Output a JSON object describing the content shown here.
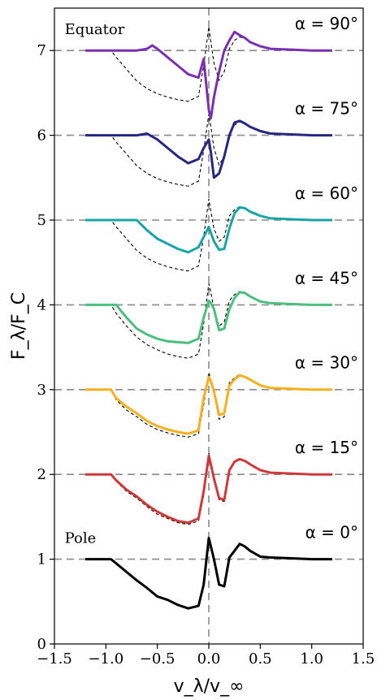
{
  "chart_data": {
    "type": "line",
    "xlabel": "v_λ/v_∞",
    "ylabel": "F_λ/F_C",
    "xlim": [
      -1.5,
      1.5
    ],
    "ylim": [
      0,
      7.5
    ],
    "xticks": [
      -1.5,
      -1.0,
      -0.5,
      0.0,
      0.5,
      1.0,
      1.5
    ],
    "xtick_labels": [
      "−1.5",
      "−1.0",
      "−0.5",
      "0.0",
      "0.5",
      "1.0",
      "1.5"
    ],
    "yticks": [
      0,
      1,
      2,
      3,
      4,
      5,
      6,
      7
    ],
    "ytick_labels": [
      "0",
      "1",
      "2",
      "3",
      "4",
      "5",
      "6",
      "7"
    ],
    "reference_lines": {
      "horizontal": [
        1,
        2,
        3,
        4,
        5,
        6,
        7
      ],
      "vertical": [
        0
      ]
    },
    "annotations": [
      {
        "text": "Equator",
        "x": -1.4,
        "y": 7.25
      },
      {
        "text": "Pole",
        "x": -1.4,
        "y": 1.25
      }
    ],
    "series": [
      {
        "alpha_label": "α = 0°",
        "offset": 1,
        "color": "#000000",
        "x": [
          -1.2,
          -0.95,
          -0.9,
          -0.8,
          -0.7,
          -0.6,
          -0.5,
          -0.4,
          -0.3,
          -0.2,
          -0.1,
          -0.05,
          0.0,
          0.02,
          0.05,
          0.1,
          0.15,
          0.2,
          0.25,
          0.3,
          0.35,
          0.4,
          0.5,
          0.6,
          0.8,
          1.0,
          1.2
        ],
        "y": [
          1.0,
          1.0,
          0.95,
          0.85,
          0.75,
          0.66,
          0.56,
          0.52,
          0.46,
          0.42,
          0.45,
          0.7,
          1.25,
          1.15,
          1.0,
          0.7,
          0.68,
          1.02,
          1.1,
          1.18,
          1.15,
          1.1,
          1.03,
          1.02,
          1.01,
          1.0,
          1.0
        ]
      },
      {
        "alpha_label": "α = 15°",
        "offset": 2,
        "color": "#d0393a",
        "x": [
          -1.2,
          -0.95,
          -0.9,
          -0.8,
          -0.7,
          -0.6,
          -0.5,
          -0.4,
          -0.3,
          -0.2,
          -0.1,
          -0.05,
          0.0,
          0.02,
          0.05,
          0.1,
          0.15,
          0.2,
          0.25,
          0.3,
          0.35,
          0.4,
          0.5,
          0.6,
          0.8,
          1.0,
          1.2
        ],
        "y": [
          2.0,
          2.0,
          1.93,
          1.82,
          1.74,
          1.64,
          1.56,
          1.5,
          1.45,
          1.43,
          1.48,
          1.8,
          2.22,
          2.12,
          1.95,
          1.72,
          1.7,
          2.05,
          2.15,
          2.18,
          2.16,
          2.12,
          2.05,
          2.02,
          2.01,
          2.0,
          2.0
        ],
        "reference": {
          "x": [
            -1.2,
            -0.95,
            -0.9,
            -0.8,
            -0.7,
            -0.6,
            -0.5,
            -0.4,
            -0.3,
            -0.2,
            -0.1,
            -0.05,
            0.0,
            0.02,
            0.05,
            0.1,
            0.15,
            0.2,
            0.25,
            0.3,
            0.35,
            0.4,
            0.5,
            0.6,
            0.8,
            1.0,
            1.2
          ],
          "y": [
            2.0,
            2.0,
            1.92,
            1.8,
            1.72,
            1.62,
            1.53,
            1.48,
            1.43,
            1.41,
            1.45,
            1.75,
            2.25,
            2.14,
            1.95,
            1.7,
            1.68,
            2.06,
            2.16,
            2.19,
            2.16,
            2.12,
            2.05,
            2.02,
            2.01,
            2.0,
            2.0
          ]
        }
      },
      {
        "alpha_label": "α = 30°",
        "offset": 3,
        "color": "#f5b01e",
        "x": [
          -1.2,
          -0.95,
          -0.9,
          -0.8,
          -0.7,
          -0.6,
          -0.5,
          -0.4,
          -0.3,
          -0.2,
          -0.1,
          -0.05,
          0.0,
          0.02,
          0.05,
          0.1,
          0.15,
          0.2,
          0.25,
          0.3,
          0.35,
          0.4,
          0.5,
          0.6,
          0.8,
          1.0,
          1.2
        ],
        "y": [
          3.0,
          3.0,
          2.9,
          2.8,
          2.72,
          2.63,
          2.57,
          2.53,
          2.5,
          2.48,
          2.52,
          2.9,
          3.15,
          3.1,
          2.98,
          2.7,
          2.72,
          3.05,
          3.12,
          3.17,
          3.15,
          3.12,
          3.05,
          3.02,
          3.01,
          3.0,
          3.0
        ],
        "reference": {
          "x": [
            -1.2,
            -0.95,
            -0.9,
            -0.8,
            -0.7,
            -0.6,
            -0.5,
            -0.4,
            -0.3,
            -0.2,
            -0.1,
            -0.05,
            0.0,
            0.02,
            0.05,
            0.1,
            0.15,
            0.2,
            0.25,
            0.3,
            0.35,
            0.4,
            0.5,
            0.6,
            0.8,
            1.0,
            1.2
          ],
          "y": [
            3.0,
            3.0,
            2.88,
            2.76,
            2.68,
            2.59,
            2.53,
            2.49,
            2.46,
            2.44,
            2.48,
            2.82,
            3.2,
            3.12,
            2.95,
            2.65,
            2.68,
            3.08,
            3.14,
            3.18,
            3.15,
            3.12,
            3.05,
            3.02,
            3.01,
            3.0,
            3.0
          ]
        }
      },
      {
        "alpha_label": "α = 45°",
        "offset": 4,
        "color": "#4cbf7f",
        "x": [
          -1.2,
          -0.95,
          -0.9,
          -0.8,
          -0.7,
          -0.6,
          -0.5,
          -0.4,
          -0.3,
          -0.2,
          -0.1,
          -0.05,
          0.0,
          0.02,
          0.05,
          0.1,
          0.15,
          0.2,
          0.25,
          0.3,
          0.35,
          0.4,
          0.5,
          0.6,
          0.8,
          1.0,
          1.2
        ],
        "y": [
          4.0,
          4.0,
          4.0,
          3.85,
          3.72,
          3.65,
          3.6,
          3.57,
          3.56,
          3.55,
          3.6,
          3.85,
          4.05,
          4.02,
          3.95,
          3.7,
          3.72,
          3.95,
          4.08,
          4.15,
          4.14,
          4.1,
          4.04,
          4.02,
          4.01,
          4.0,
          4.0
        ],
        "reference": {
          "x": [
            -1.2,
            -0.95,
            -0.9,
            -0.8,
            -0.7,
            -0.6,
            -0.5,
            -0.4,
            -0.3,
            -0.2,
            -0.1,
            -0.05,
            0.0,
            0.02,
            0.05,
            0.1,
            0.15,
            0.2,
            0.25,
            0.3,
            0.35,
            0.4,
            0.5,
            0.6,
            0.8,
            1.0,
            1.2
          ],
          "y": [
            4.0,
            4.0,
            3.9,
            3.75,
            3.62,
            3.53,
            3.47,
            3.42,
            3.39,
            3.37,
            3.42,
            3.78,
            4.25,
            4.15,
            3.95,
            3.75,
            3.8,
            4.05,
            4.12,
            4.16,
            4.14,
            4.1,
            4.04,
            4.02,
            4.01,
            4.0,
            4.0
          ]
        }
      },
      {
        "alpha_label": "α = 60°",
        "offset": 5,
        "color": "#1aa5a5",
        "x": [
          -1.2,
          -0.95,
          -0.9,
          -0.8,
          -0.7,
          -0.6,
          -0.5,
          -0.4,
          -0.3,
          -0.2,
          -0.1,
          -0.05,
          0.0,
          0.02,
          0.05,
          0.1,
          0.15,
          0.2,
          0.25,
          0.3,
          0.35,
          0.4,
          0.5,
          0.6,
          0.8,
          1.0,
          1.2
        ],
        "y": [
          5.0,
          5.0,
          5.0,
          5.0,
          5.0,
          4.88,
          4.78,
          4.72,
          4.66,
          4.62,
          4.68,
          4.8,
          4.92,
          4.85,
          4.75,
          4.65,
          4.66,
          4.9,
          5.08,
          5.15,
          5.14,
          5.1,
          5.05,
          5.02,
          5.01,
          5.0,
          5.0
        ],
        "reference": {
          "x": [
            -1.2,
            -0.95,
            -0.9,
            -0.8,
            -0.7,
            -0.6,
            -0.5,
            -0.4,
            -0.3,
            -0.2,
            -0.1,
            -0.05,
            0.0,
            0.02,
            0.05,
            0.1,
            0.15,
            0.2,
            0.25,
            0.3,
            0.35,
            0.4,
            0.5,
            0.6,
            0.8,
            1.0,
            1.2
          ],
          "y": [
            5.0,
            5.0,
            4.92,
            4.78,
            4.64,
            4.55,
            4.49,
            4.45,
            4.42,
            4.4,
            4.46,
            4.8,
            5.25,
            5.1,
            4.9,
            4.75,
            4.8,
            5.05,
            5.12,
            5.16,
            5.14,
            5.1,
            5.05,
            5.02,
            5.01,
            5.0,
            5.0
          ]
        }
      },
      {
        "alpha_label": "α = 75°",
        "offset": 6,
        "color": "#26287f",
        "x": [
          -1.2,
          -0.95,
          -0.9,
          -0.8,
          -0.7,
          -0.6,
          -0.5,
          -0.4,
          -0.3,
          -0.2,
          -0.1,
          -0.05,
          0.0,
          0.02,
          0.05,
          0.1,
          0.15,
          0.2,
          0.25,
          0.3,
          0.35,
          0.4,
          0.5,
          0.6,
          0.8,
          1.0,
          1.2
        ],
        "y": [
          6.0,
          6.0,
          6.0,
          6.0,
          6.0,
          6.02,
          5.95,
          5.85,
          5.75,
          5.67,
          5.72,
          5.85,
          5.95,
          5.8,
          5.5,
          5.55,
          5.75,
          6.0,
          6.15,
          6.17,
          6.14,
          6.1,
          6.05,
          6.02,
          6.01,
          6.0,
          6.0
        ],
        "reference": {
          "x": [
            -1.2,
            -0.95,
            -0.9,
            -0.8,
            -0.7,
            -0.6,
            -0.5,
            -0.4,
            -0.3,
            -0.2,
            -0.1,
            -0.05,
            0.0,
            0.02,
            0.05,
            0.1,
            0.15,
            0.2,
            0.25,
            0.3,
            0.35,
            0.4,
            0.5,
            0.6,
            0.8,
            1.0,
            1.2
          ],
          "y": [
            6.0,
            6.0,
            5.92,
            5.78,
            5.64,
            5.55,
            5.49,
            5.45,
            5.42,
            5.4,
            5.46,
            5.82,
            6.25,
            6.1,
            5.85,
            5.65,
            5.75,
            6.02,
            6.12,
            6.16,
            6.14,
            6.1,
            6.05,
            6.02,
            6.01,
            6.0,
            6.0
          ]
        }
      },
      {
        "alpha_label": "α = 90°",
        "offset": 7,
        "color": "#7a2fb0",
        "x": [
          -1.2,
          -0.95,
          -0.9,
          -0.8,
          -0.7,
          -0.6,
          -0.55,
          -0.5,
          -0.4,
          -0.3,
          -0.2,
          -0.1,
          -0.05,
          0.0,
          0.02,
          0.05,
          0.1,
          0.15,
          0.2,
          0.25,
          0.3,
          0.35,
          0.4,
          0.5,
          0.6,
          0.8,
          1.0,
          1.2
        ],
        "y": [
          7.0,
          7.0,
          7.0,
          7.0,
          7.0,
          7.02,
          7.06,
          7.02,
          6.92,
          6.82,
          6.72,
          6.68,
          6.9,
          6.3,
          6.2,
          6.45,
          6.75,
          7.0,
          7.12,
          7.22,
          7.18,
          7.15,
          7.1,
          7.05,
          7.02,
          7.01,
          7.0,
          7.0
        ],
        "reference": {
          "x": [
            -1.2,
            -0.95,
            -0.9,
            -0.8,
            -0.7,
            -0.6,
            -0.5,
            -0.4,
            -0.3,
            -0.2,
            -0.1,
            -0.05,
            0.0,
            0.02,
            0.05,
            0.1,
            0.15,
            0.2,
            0.25,
            0.3,
            0.35,
            0.4,
            0.5,
            0.6,
            0.8,
            1.0,
            1.2
          ],
          "y": [
            7.0,
            7.0,
            6.92,
            6.78,
            6.64,
            6.55,
            6.49,
            6.45,
            6.42,
            6.4,
            6.46,
            6.82,
            7.28,
            7.1,
            6.85,
            6.65,
            6.75,
            7.02,
            7.12,
            7.16,
            7.14,
            7.1,
            7.05,
            7.02,
            7.01,
            7.0,
            7.0
          ]
        }
      }
    ]
  }
}
